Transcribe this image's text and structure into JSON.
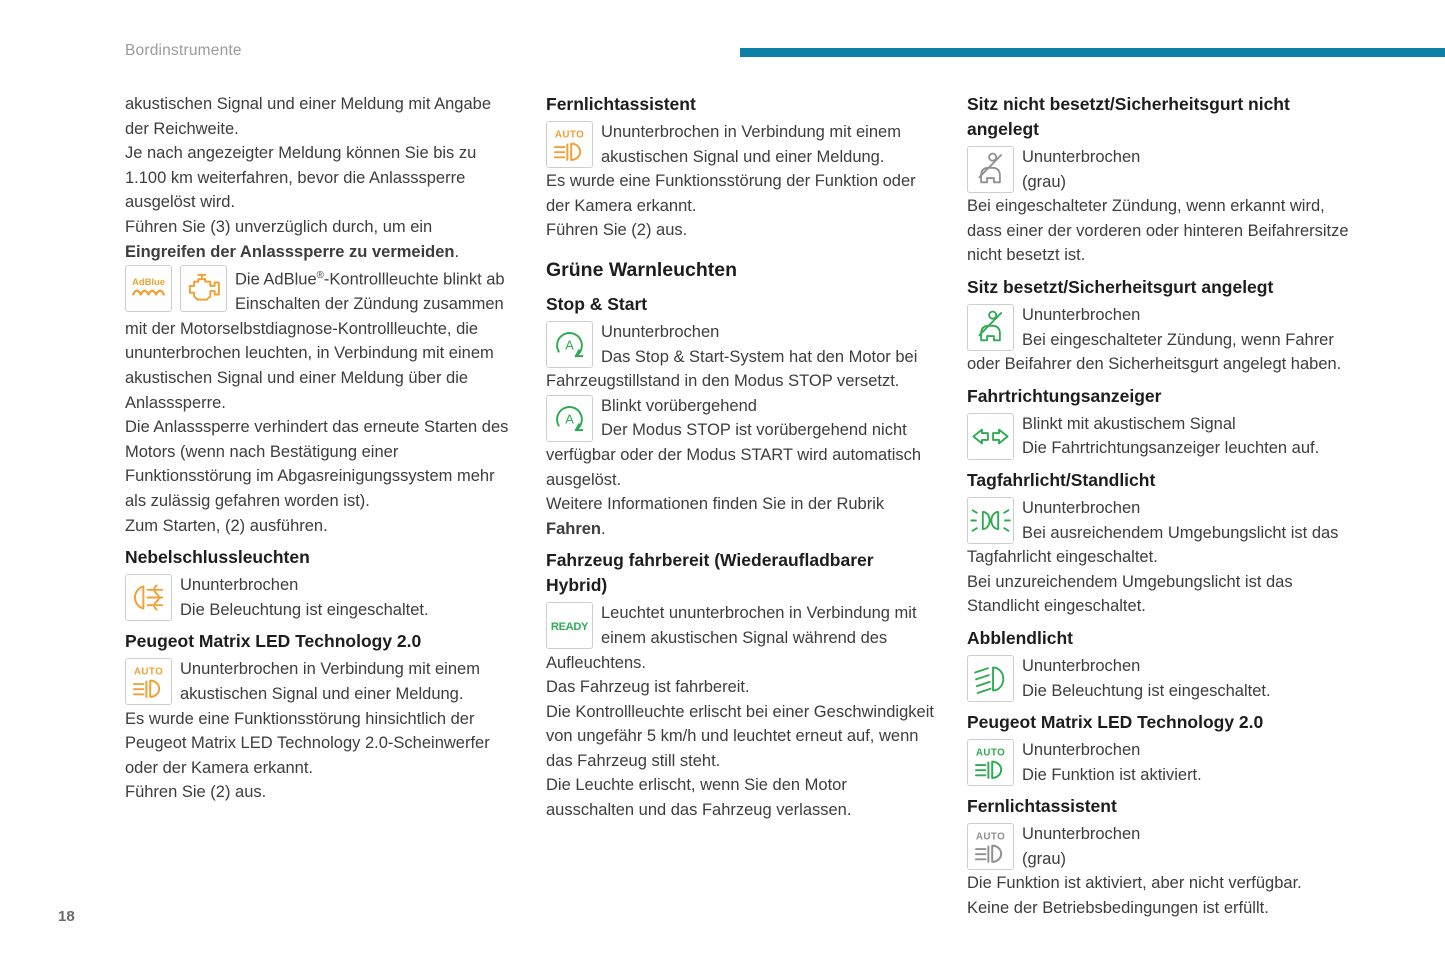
{
  "page": {
    "header": "Bordinstrumente",
    "page_number": "18",
    "accent_bar_color": "#0d80a7",
    "background": "#ffffff"
  },
  "colors": {
    "orange": "#f0a136",
    "green": "#2eab51",
    "gray": "#909090",
    "text": "#3d3d3d",
    "heading": "#1d1d1d",
    "header_gray": "#9b9b9b",
    "page_number_gray": "#6b6b6b",
    "icon_border": "#cecece"
  },
  "columns": [
    {
      "blocks": [
        {
          "type": "para",
          "segs": [
            {
              "t": "akustischen Signal und einer Meldung mit Angabe der Reichweite."
            }
          ]
        },
        {
          "type": "para",
          "segs": [
            {
              "t": "Je nach angezeigter Meldung können Sie bis zu 1.100 km weiterfahren, bevor die Anlasssperre ausgelöst wird."
            }
          ]
        },
        {
          "type": "para",
          "segs": [
            {
              "t": "Führen Sie (3) unverzüglich durch, um ein "
            },
            {
              "t": "Eingreifen der Anlasssperre zu vermeiden",
              "b": true
            },
            {
              "t": "."
            }
          ]
        },
        {
          "type": "entry",
          "icons": [
            "adblue-icon|orange",
            "engine-warning-icon|orange"
          ],
          "segs": [
            {
              "t": "Die AdBlue"
            },
            {
              "t": "®",
              "sup": true
            },
            {
              "t": "-Kontrollleuchte blinkt ab"
            },
            {
              "br": true
            },
            {
              "t": "Einschalten der Zündung zusammen mit der Motorselbstdiagnose-Kontrollleuchte, die ununterbrochen leuchten, in Verbindung mit einem akustischen Signal und einer Meldung über die Anlasssperre."
            }
          ]
        },
        {
          "type": "para",
          "segs": [
            {
              "t": "Die Anlasssperre verhindert das erneute Starten des Motors (wenn nach Bestätigung einer Funktionsstörung im Abgasreinigungssystem mehr als zulässig gefahren worden ist)."
            }
          ]
        },
        {
          "type": "para",
          "segs": [
            {
              "t": "Zum Starten, (2) ausführen."
            }
          ]
        },
        {
          "type": "heading",
          "text": "Nebelschlussleuchten"
        },
        {
          "type": "entry",
          "icons": [
            "rear-fog-light-icon|orange"
          ],
          "segs": [
            {
              "t": "Ununterbrochen"
            },
            {
              "br": true
            },
            {
              "t": "Die Beleuchtung ist eingeschaltet."
            }
          ]
        },
        {
          "type": "heading",
          "text": "Peugeot Matrix LED Technology 2.0"
        },
        {
          "type": "entry",
          "icons": [
            "auto-headlight-icon|orange"
          ],
          "segs": [
            {
              "t": "Ununterbrochen in Verbindung mit einem"
            },
            {
              "br": true
            },
            {
              "t": "akustischen Signal und einer Meldung."
            }
          ]
        },
        {
          "type": "para",
          "segs": [
            {
              "t": "Es wurde eine Funktionsstörung hinsichtlich der Peugeot Matrix LED Technology 2.0-Scheinwerfer oder der Kamera erkannt."
            }
          ]
        },
        {
          "type": "para",
          "segs": [
            {
              "t": "Führen Sie (2) aus."
            }
          ]
        }
      ]
    },
    {
      "blocks": [
        {
          "type": "heading",
          "text": "Fernlichtassistent"
        },
        {
          "type": "entry",
          "icons": [
            "auto-headlight-icon|orange"
          ],
          "segs": [
            {
              "t": "Ununterbrochen in Verbindung mit einem"
            },
            {
              "br": true
            },
            {
              "t": "akustischen Signal und einer Meldung."
            }
          ]
        },
        {
          "type": "para",
          "segs": [
            {
              "t": "Es wurde eine Funktionsstörung der Funktion oder der Kamera erkannt."
            }
          ]
        },
        {
          "type": "para",
          "segs": [
            {
              "t": "Führen Sie (2) aus."
            }
          ]
        },
        {
          "type": "section",
          "text": "Grüne Warnleuchten"
        },
        {
          "type": "heading",
          "text": "Stop & Start"
        },
        {
          "type": "entry",
          "icons": [
            "stop-start-icon|green"
          ],
          "segs": [
            {
              "t": "Ununterbrochen"
            },
            {
              "br": true
            },
            {
              "t": "Das Stop & Start-System hat den Motor bei Fahrzeugstillstand in den Modus STOP versetzt."
            }
          ]
        },
        {
          "type": "entry",
          "icons": [
            "stop-start-icon|green"
          ],
          "segs": [
            {
              "t": "Blinkt vorübergehend"
            },
            {
              "br": true
            },
            {
              "t": "Der Modus STOP ist vorübergehend nicht verfügbar oder der Modus START wird automatisch ausgelöst."
            }
          ]
        },
        {
          "type": "para",
          "segs": [
            {
              "t": "Weitere Informationen finden Sie in der Rubrik "
            },
            {
              "t": "Fahren",
              "b": true
            },
            {
              "t": "."
            }
          ]
        },
        {
          "type": "heading",
          "text": "Fahrzeug fahrbereit (Wiederaufladbarer Hybrid)"
        },
        {
          "type": "entry",
          "icons": [
            "ready-icon|green"
          ],
          "segs": [
            {
              "t": "Leuchtet ununterbrochen in Verbindung mit"
            },
            {
              "br": true
            },
            {
              "t": "einem akustischen Signal während des Aufleuchtens."
            }
          ]
        },
        {
          "type": "para",
          "segs": [
            {
              "t": "Das Fahrzeug ist fahrbereit."
            }
          ]
        },
        {
          "type": "para",
          "segs": [
            {
              "t": "Die Kontrollleuchte erlischt bei einer Geschwindigkeit von ungefähr 5 km/h und leuchtet erneut auf, wenn das Fahrzeug still steht."
            }
          ]
        },
        {
          "type": "para",
          "segs": [
            {
              "t": "Die Leuchte erlischt, wenn Sie den Motor ausschalten und das Fahrzeug verlassen."
            }
          ]
        }
      ]
    },
    {
      "blocks": [
        {
          "type": "heading",
          "text": "Sitz nicht besetzt/Sicherheitsgurt nicht angelegt"
        },
        {
          "type": "entry",
          "icons": [
            "seatbelt-icon|gray"
          ],
          "segs": [
            {
              "t": "Ununterbrochen"
            },
            {
              "br": true
            },
            {
              "t": "(grau)"
            }
          ]
        },
        {
          "type": "para",
          "segs": [
            {
              "t": "Bei eingeschalteter Zündung, wenn erkannt wird, dass einer der vorderen oder hinteren Beifahrersitze nicht besetzt ist."
            }
          ]
        },
        {
          "type": "heading",
          "text": "Sitz besetzt/Sicherheitsgurt angelegt"
        },
        {
          "type": "entry",
          "icons": [
            "seatbelt-icon|green"
          ],
          "segs": [
            {
              "t": "Ununterbrochen"
            },
            {
              "br": true
            },
            {
              "t": "Bei eingeschalteter Zündung, wenn Fahrer oder Beifahrer den Sicherheitsgurt angelegt haben."
            }
          ]
        },
        {
          "type": "heading",
          "text": "Fahrtrichtungsanzeiger"
        },
        {
          "type": "entry",
          "icons": [
            "turn-indicators-icon|green"
          ],
          "segs": [
            {
              "t": "Blinkt mit akustischem Signal"
            },
            {
              "br": true
            },
            {
              "t": "Die Fahrtrichtungsanzeiger leuchten auf."
            }
          ]
        },
        {
          "type": "heading",
          "text": "Tagfahrlicht/Standlicht"
        },
        {
          "type": "entry",
          "icons": [
            "daytime-lights-icon|green"
          ],
          "segs": [
            {
              "t": "Ununterbrochen"
            },
            {
              "br": true
            },
            {
              "t": "Bei ausreichendem Umgebungslicht ist das Tagfahrlicht eingeschaltet."
            }
          ]
        },
        {
          "type": "para",
          "segs": [
            {
              "t": "Bei unzureichendem Umgebungslicht ist das Standlicht eingeschaltet."
            }
          ]
        },
        {
          "type": "heading",
          "text": "Abblendlicht"
        },
        {
          "type": "entry",
          "icons": [
            "low-beam-icon|green"
          ],
          "segs": [
            {
              "t": "Ununterbrochen"
            },
            {
              "br": true
            },
            {
              "t": "Die Beleuchtung ist eingeschaltet."
            }
          ]
        },
        {
          "type": "heading",
          "text": "Peugeot Matrix LED Technology 2.0"
        },
        {
          "type": "entry",
          "icons": [
            "auto-headlight-icon|green"
          ],
          "segs": [
            {
              "t": "Ununterbrochen"
            },
            {
              "br": true
            },
            {
              "t": "Die Funktion ist aktiviert."
            }
          ]
        },
        {
          "type": "heading",
          "text": "Fernlichtassistent"
        },
        {
          "type": "entry",
          "icons": [
            "auto-headlight-icon|gray"
          ],
          "segs": [
            {
              "t": "Ununterbrochen"
            },
            {
              "br": true
            },
            {
              "t": "(grau)"
            }
          ]
        },
        {
          "type": "para",
          "segs": [
            {
              "t": "Die Funktion ist aktiviert, aber nicht verfügbar."
            }
          ]
        },
        {
          "type": "para",
          "segs": [
            {
              "t": "Keine der Betriebsbedingungen ist erfüllt."
            }
          ]
        }
      ]
    }
  ]
}
